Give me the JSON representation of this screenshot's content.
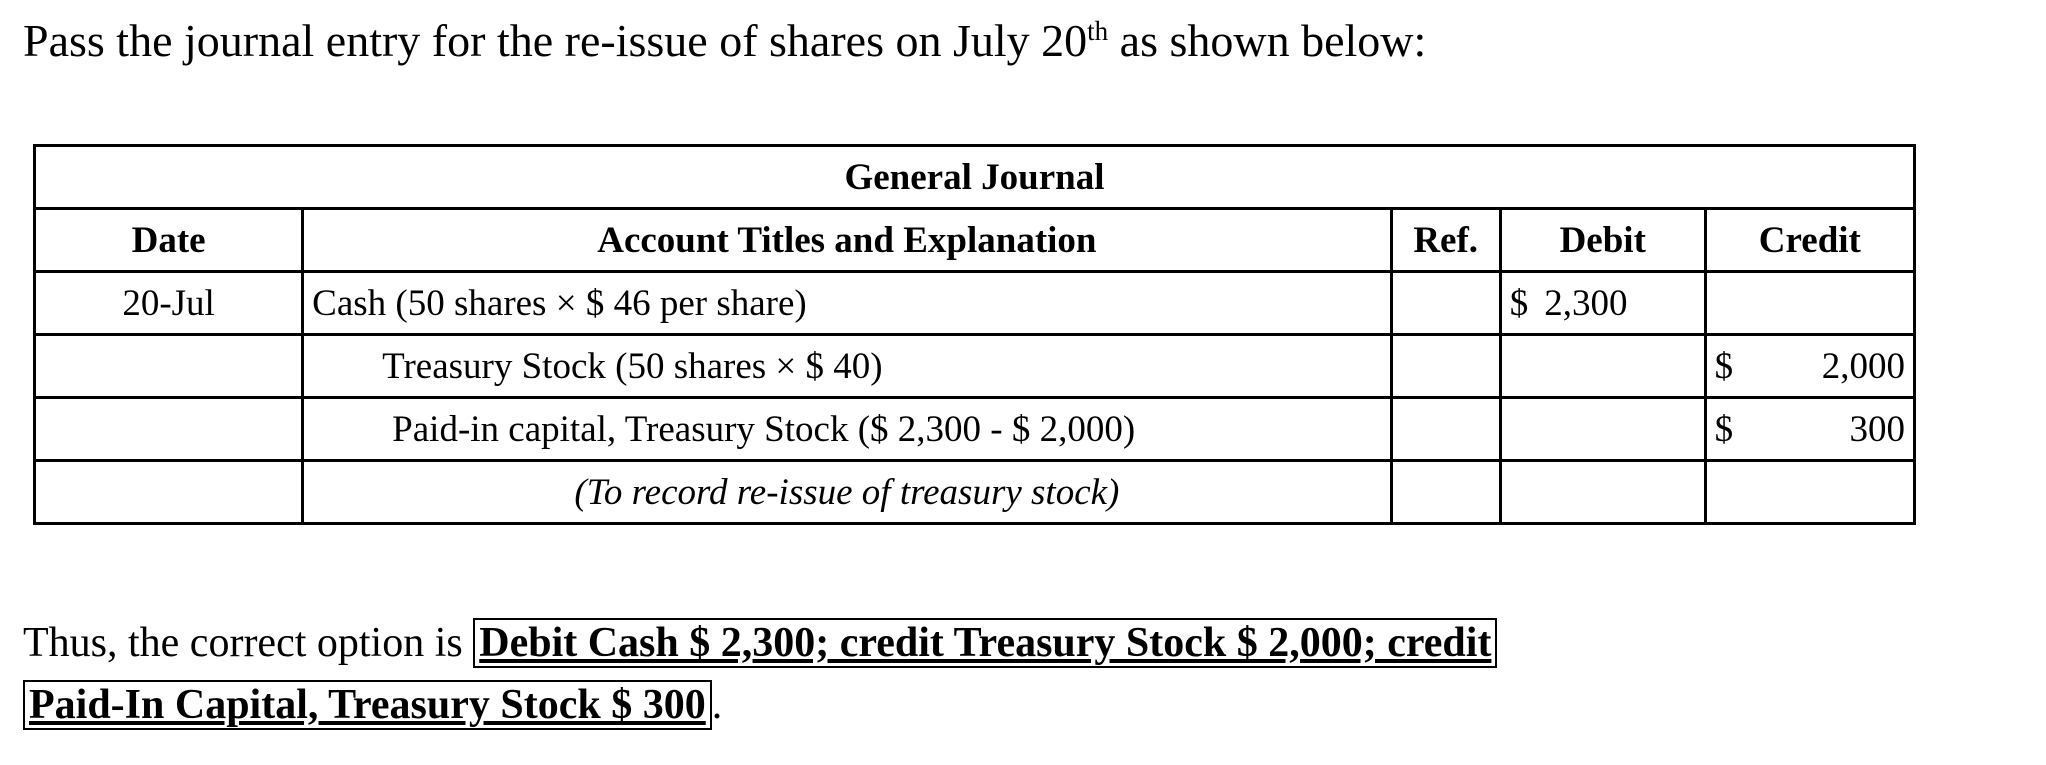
{
  "intro": {
    "text": "Pass the journal entry for the re-issue of shares on July 20",
    "sup": "th",
    "suffix": " as shown below:"
  },
  "journal": {
    "title": "General Journal",
    "headers": {
      "date": "Date",
      "account": "Account Titles and Explanation",
      "ref": "Ref.",
      "debit": "Debit",
      "credit": "Credit"
    },
    "rows": [
      {
        "date": "20-Jul",
        "account": "Cash (50 shares × $ 46 per share)",
        "ref": "",
        "debit_cur": "$",
        "debit": "2,300",
        "credit_cur": "",
        "credit": ""
      },
      {
        "date": "",
        "account": "Treasury Stock (50 shares × $ 40)",
        "ref": "",
        "debit_cur": "",
        "debit": "",
        "credit_cur": "$",
        "credit": "2,000"
      },
      {
        "date": "",
        "account": "Paid-in capital, Treasury Stock ($ 2,300 - $ 2,000)",
        "ref": "",
        "debit_cur": "",
        "debit": "",
        "credit_cur": "$",
        "credit": "300"
      },
      {
        "date": "",
        "account": "(To record re-issue of treasury stock)",
        "ref": "",
        "debit": "",
        "credit": ""
      }
    ]
  },
  "conclusion": {
    "prefix": "Thus, the correct option is ",
    "answer_line1": "Debit Cash $ 2,300; credit Treasury Stock $ 2,000; credit",
    "answer_line2": "Paid-In Capital, Treasury Stock $ 300",
    "suffix": "."
  }
}
